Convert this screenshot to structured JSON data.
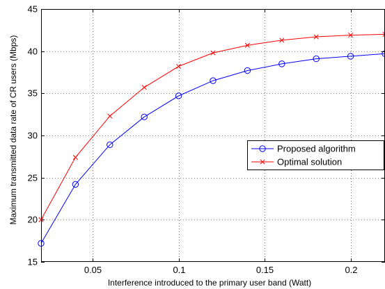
{
  "chart_data": {
    "type": "line",
    "xlabel": "Interference introduced to the primary user band (Watt)",
    "ylabel": "Maximum transmitted data rate of CR users (Mbps)",
    "xlim": [
      0.02,
      0.22
    ],
    "ylim": [
      15,
      45
    ],
    "xticks": [
      0.05,
      0.1,
      0.15,
      0.2
    ],
    "xtick_labels": [
      "0.05",
      "0.1",
      "0.15",
      "0.2"
    ],
    "yticks": [
      15,
      20,
      25,
      30,
      35,
      40,
      45
    ],
    "ytick_labels": [
      "15",
      "20",
      "25",
      "30",
      "35",
      "40",
      "45"
    ],
    "grid": true,
    "legend_position": "center-right",
    "x": [
      0.02,
      0.04,
      0.06,
      0.08,
      0.1,
      0.12,
      0.14,
      0.16,
      0.18,
      0.2,
      0.22
    ],
    "series": [
      {
        "name": "Proposed algorithm",
        "color": "#0000ff",
        "marker": "circle",
        "values": [
          17.2,
          24.2,
          28.9,
          32.2,
          34.7,
          36.5,
          37.7,
          38.5,
          39.1,
          39.4,
          39.7
        ]
      },
      {
        "name": "Optimal solution",
        "color": "#ff0000",
        "marker": "x",
        "values": [
          20.0,
          27.4,
          32.3,
          35.7,
          38.2,
          39.8,
          40.7,
          41.3,
          41.7,
          41.9,
          42.0
        ]
      }
    ]
  }
}
